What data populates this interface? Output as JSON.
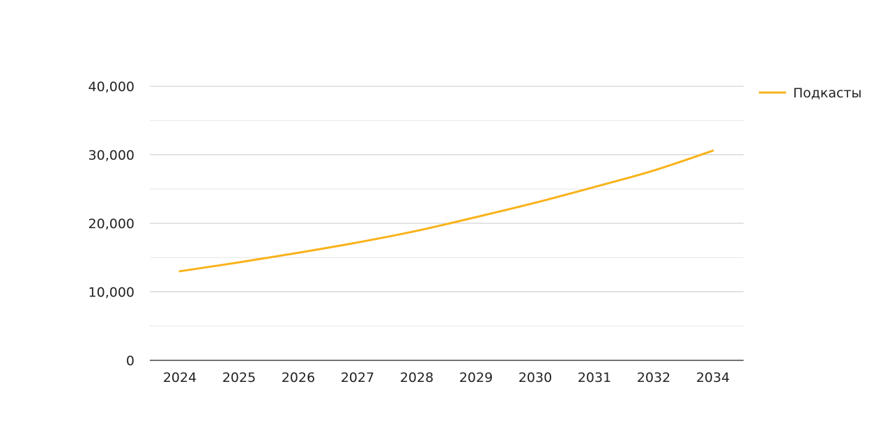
{
  "chart_data": {
    "type": "line",
    "categories": [
      "2024",
      "2025",
      "2026",
      "2027",
      "2028",
      "2029",
      "2030",
      "2031",
      "2032",
      "2034"
    ],
    "series": [
      {
        "name": "Подкасты",
        "color": "#F9B21A",
        "values": [
          13000,
          14300,
          15700,
          17200,
          18900,
          20900,
          23000,
          25300,
          27700,
          30600
        ]
      }
    ],
    "ylim": [
      0,
      40000
    ],
    "yticks": [
      0,
      10000,
      20000,
      30000,
      40000
    ],
    "ytick_labels": [
      "0",
      "10,000",
      "20,000",
      "30,000",
      "40,000"
    ],
    "grid": true,
    "legend_position": "right"
  }
}
